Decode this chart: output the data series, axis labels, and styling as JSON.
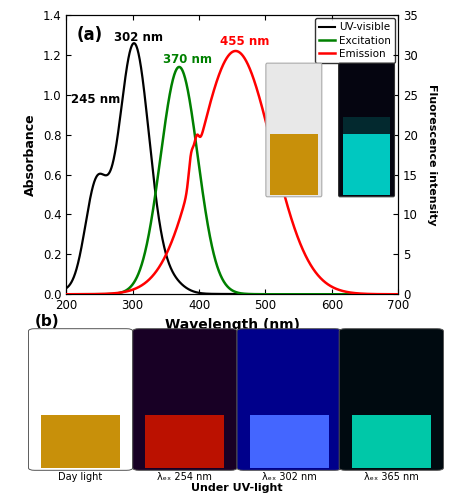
{
  "title_a": "(a)",
  "xlabel": "Wavelength (nm)",
  "ylabel_left": "Absorbance",
  "ylabel_right": "Fluorescence intensity",
  "xlim": [
    200,
    700
  ],
  "ylim_left": [
    0.0,
    1.4
  ],
  "ylim_right": [
    0,
    35
  ],
  "yticks_left": [
    0.0,
    0.2,
    0.4,
    0.6,
    0.8,
    1.0,
    1.2,
    1.4
  ],
  "yticks_right": [
    0,
    5,
    10,
    15,
    20,
    25,
    30,
    35
  ],
  "xticks": [
    200,
    300,
    400,
    500,
    600,
    700
  ],
  "uv_peak1_x": 245,
  "uv_peak1_y": 0.88,
  "uv_peak2_x": 302,
  "uv_peak2_y": 1.25,
  "exc_peak_x": 370,
  "exc_peak_y": 28.5,
  "em_peak_x": 455,
  "em_peak_y": 30.5,
  "legend_labels": [
    "UV-visible",
    "Excitation",
    "Emission"
  ],
  "legend_colors": [
    "black",
    "green",
    "red"
  ],
  "annotation_245": "245 nm",
  "annotation_302": "302 nm",
  "annotation_370": "370 nm",
  "annotation_455": "455 nm",
  "bg_color": "white",
  "bottom_panel_label": "(b)",
  "bottom_labels": [
    "Day light",
    "λₑₓ 254 nm",
    "λₑₓ 302 nm",
    "λₑₓ 365 nm"
  ],
  "bottom_sublabel": "Under UV-light",
  "inset_vial1_body": "#e8e8e8",
  "inset_vial1_liquid": "#c8900a",
  "inset_vial2_body": "#050510",
  "inset_vial2_liquid": "#00c8c0",
  "vial_bg_colors": [
    "#ffffff",
    "#180025",
    "#00008b",
    "#000a10"
  ],
  "vial_liquid_colors": [
    "#c8900a",
    "#bb1100",
    "#4466ff",
    "#00c8a8"
  ]
}
